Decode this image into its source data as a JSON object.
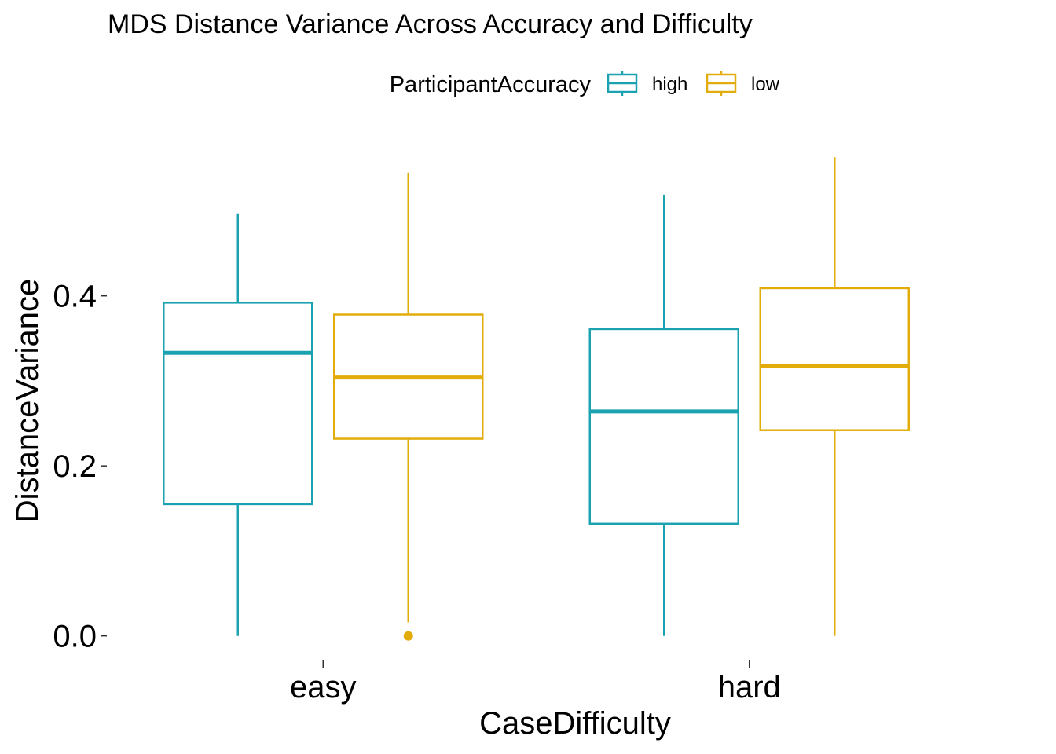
{
  "chart_data": {
    "type": "boxplot",
    "title": "MDS Distance Variance Across Accuracy and Difficulty",
    "xlabel": "CaseDifficulty",
    "ylabel": "DistanceVariance",
    "categories": [
      "easy",
      "hard"
    ],
    "ylim": [
      -0.028,
      0.566
    ],
    "yticks": [
      0.0,
      0.2,
      0.4
    ],
    "ytick_labels": [
      "0.0",
      "0.2",
      "0.4"
    ],
    "grid": false,
    "legend": {
      "title": "ParticipantAccuracy",
      "placement": "top"
    },
    "series": [
      {
        "name": "high",
        "color": "#1ba2b0",
        "boxes": [
          {
            "category": "easy",
            "min": 0.0,
            "q1": 0.155,
            "median": 0.333,
            "q3": 0.392,
            "max": 0.497,
            "outliers": []
          },
          {
            "category": "hard",
            "min": 0.0,
            "q1": 0.132,
            "median": 0.264,
            "q3": 0.361,
            "max": 0.519,
            "outliers": []
          }
        ]
      },
      {
        "name": "low",
        "color": "#e2ac0b",
        "boxes": [
          {
            "category": "easy",
            "min": 0.016,
            "q1": 0.232,
            "median": 0.304,
            "q3": 0.378,
            "max": 0.545,
            "outliers": [
              0.0
            ]
          },
          {
            "category": "hard",
            "min": 0.0,
            "q1": 0.242,
            "median": 0.317,
            "q3": 0.409,
            "max": 0.563,
            "outliers": []
          }
        ]
      }
    ]
  }
}
